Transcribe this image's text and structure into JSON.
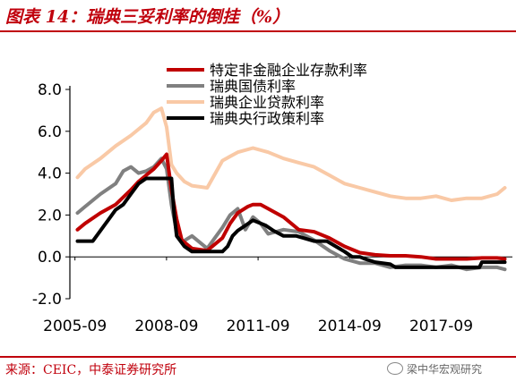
{
  "header": {
    "title": "图表 14：瑞典三妥利率的倒挂（%）"
  },
  "footer": {
    "source": "来源：CEIC，中泰证券研究所",
    "watermark": "梁中华宏观研究"
  },
  "colors": {
    "accent": "#c0000c",
    "nonfin": "#c00000",
    "bond": "#808080",
    "loan": "#f9c9a6",
    "policy": "#000000"
  },
  "chart_data": {
    "type": "line",
    "title": "图表 14：瑞典三妥利率的倒挂（%）",
    "xlabel": "",
    "ylabel": "",
    "x_ticks": [
      "2005-09",
      "2008-09",
      "2011-09",
      "2014-09",
      "2017-09"
    ],
    "y_ticks": [
      "8.0",
      "6.0",
      "4.0",
      "2.0",
      "0.0",
      "-2.0"
    ],
    "ylim": [
      -2.0,
      8.0
    ],
    "xlim": [
      2005.5,
      2020.0
    ],
    "grid": false,
    "legend_position": "top-right",
    "series": [
      {
        "name": "特定非金融企业存款利率",
        "color": "#c00000",
        "x": [
          2005.75,
          2006.0,
          2006.5,
          2007.0,
          2007.5,
          2007.75,
          2008.0,
          2008.25,
          2008.5,
          2008.67,
          2008.83,
          2009.0,
          2009.17,
          2009.5,
          2010.0,
          2010.5,
          2010.75,
          2011.0,
          2011.33,
          2011.5,
          2011.75,
          2012.0,
          2012.5,
          2013.0,
          2013.5,
          2014.0,
          2014.5,
          2015.0,
          2015.5,
          2016.0,
          2016.5,
          2017.0,
          2017.5,
          2018.0,
          2018.5,
          2019.0,
          2019.5,
          2019.75
        ],
        "values": [
          1.3,
          1.6,
          2.1,
          2.5,
          3.2,
          3.6,
          3.9,
          4.2,
          4.6,
          4.9,
          3.2,
          1.8,
          0.8,
          0.4,
          0.3,
          0.9,
          1.6,
          2.1,
          2.4,
          2.5,
          2.5,
          2.3,
          1.9,
          1.3,
          1.2,
          0.9,
          0.5,
          0.2,
          0.1,
          0.05,
          0.05,
          0.0,
          -0.1,
          -0.1,
          -0.1,
          -0.05,
          -0.05,
          -0.1
        ]
      },
      {
        "name": "瑞典国债利率",
        "color": "#808080",
        "x": [
          2005.75,
          2006.0,
          2006.5,
          2007.0,
          2007.25,
          2007.5,
          2007.75,
          2008.0,
          2008.25,
          2008.5,
          2008.67,
          2008.83,
          2009.0,
          2009.17,
          2009.5,
          2010.0,
          2010.5,
          2010.75,
          2011.0,
          2011.25,
          2011.5,
          2011.75,
          2012.0,
          2012.5,
          2013.0,
          2013.5,
          2014.0,
          2014.5,
          2015.0,
          2015.5,
          2016.0,
          2016.5,
          2017.0,
          2017.5,
          2018.0,
          2018.5,
          2019.0,
          2019.5,
          2019.75
        ],
        "values": [
          2.1,
          2.4,
          3.0,
          3.5,
          4.1,
          4.3,
          4.0,
          4.1,
          4.3,
          4.7,
          4.2,
          2.5,
          1.2,
          0.7,
          1.0,
          0.4,
          1.4,
          2.0,
          2.3,
          1.3,
          1.9,
          1.6,
          1.1,
          1.3,
          1.2,
          0.8,
          0.3,
          -0.1,
          -0.3,
          -0.3,
          -0.5,
          -0.4,
          -0.4,
          -0.5,
          -0.4,
          -0.6,
          -0.5,
          -0.5,
          -0.6
        ]
      },
      {
        "name": "瑞典企业贷款利率",
        "color": "#f9c9a6",
        "x": [
          2005.75,
          2006.0,
          2006.5,
          2007.0,
          2007.5,
          2008.0,
          2008.25,
          2008.5,
          2008.67,
          2008.83,
          2009.0,
          2009.25,
          2009.5,
          2010.0,
          2010.5,
          2011.0,
          2011.5,
          2012.0,
          2012.5,
          2013.0,
          2013.5,
          2014.0,
          2014.5,
          2015.0,
          2015.5,
          2016.0,
          2016.5,
          2017.0,
          2017.5,
          2018.0,
          2018.5,
          2019.0,
          2019.5,
          2019.75
        ],
        "values": [
          3.8,
          4.2,
          4.7,
          5.3,
          5.8,
          6.4,
          6.9,
          7.1,
          6.2,
          4.4,
          4.0,
          3.6,
          3.4,
          3.3,
          4.6,
          5.0,
          5.2,
          5.0,
          4.7,
          4.5,
          4.3,
          3.9,
          3.5,
          3.3,
          3.1,
          2.9,
          2.8,
          2.8,
          2.9,
          2.7,
          2.8,
          2.8,
          3.0,
          3.3
        ]
      },
      {
        "name": "瑞典央行政策利率",
        "color": "#000000",
        "x": [
          2005.75,
          2006.25,
          2006.5,
          2006.75,
          2007.0,
          2007.25,
          2007.5,
          2007.75,
          2008.0,
          2008.5,
          2008.83,
          2008.92,
          2009.0,
          2009.25,
          2009.5,
          2010.5,
          2010.67,
          2010.83,
          2011.0,
          2011.25,
          2011.5,
          2011.92,
          2012.17,
          2012.5,
          2012.92,
          2013.5,
          2013.92,
          2014.5,
          2014.75,
          2015.0,
          2015.17,
          2015.5,
          2016.0,
          2016.17,
          2018.92,
          2019.0,
          2019.75
        ],
        "values": [
          0.75,
          0.75,
          1.25,
          1.75,
          2.25,
          2.5,
          3.0,
          3.5,
          3.75,
          3.75,
          3.75,
          2.0,
          1.0,
          0.5,
          0.25,
          0.25,
          0.5,
          1.0,
          1.25,
          1.5,
          1.75,
          1.5,
          1.25,
          1.0,
          1.0,
          0.75,
          0.75,
          0.25,
          0.0,
          0.0,
          -0.1,
          -0.25,
          -0.35,
          -0.5,
          -0.5,
          -0.25,
          -0.25
        ]
      }
    ]
  }
}
